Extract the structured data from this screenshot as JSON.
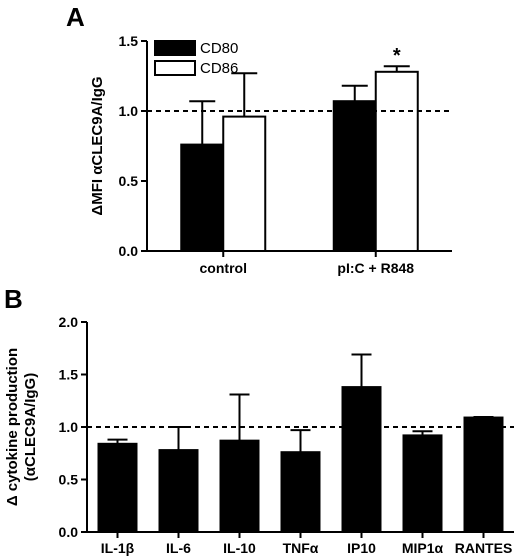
{
  "chart_data": [
    {
      "panel": "A",
      "type": "bar",
      "ylabel": "ΔMFI αCLEC9A/IgG",
      "ylim": [
        0,
        1.5
      ],
      "yticks": [
        "0.0",
        "0.5",
        "1.0",
        "1.5"
      ],
      "reference_line": 1.0,
      "legend_position": "top-left",
      "categories": [
        "control",
        "pI:C + R848"
      ],
      "series": [
        {
          "name": "CD80",
          "fill": "#000000",
          "values": [
            0.76,
            1.07
          ],
          "errors": [
            0.31,
            0.11
          ]
        },
        {
          "name": "CD86",
          "fill": "#ffffff",
          "values": [
            0.96,
            1.28
          ],
          "errors": [
            0.31,
            0.04
          ]
        }
      ],
      "annotations": [
        {
          "category": "pI:C + R848",
          "series": "CD86",
          "text": "*"
        }
      ]
    },
    {
      "panel": "B",
      "type": "bar",
      "ylabel": "Δ cytokine production\n(αCLEC9A/IgG)",
      "ylim": [
        0,
        2.0
      ],
      "yticks": [
        "0.0",
        "0.5",
        "1.0",
        "1.5",
        "2.0"
      ],
      "reference_line": 1.0,
      "categories": [
        "IL-1β",
        "IL-6",
        "IL-10",
        "TNFα",
        "IP10",
        "MIP1α",
        "RANTES"
      ],
      "series": [
        {
          "fill": "#000000",
          "values": [
            0.84,
            0.78,
            0.87,
            0.76,
            1.38,
            0.92,
            1.09
          ],
          "errors": [
            0.04,
            0.22,
            0.44,
            0.21,
            0.31,
            0.04,
            0.005
          ]
        }
      ]
    }
  ]
}
